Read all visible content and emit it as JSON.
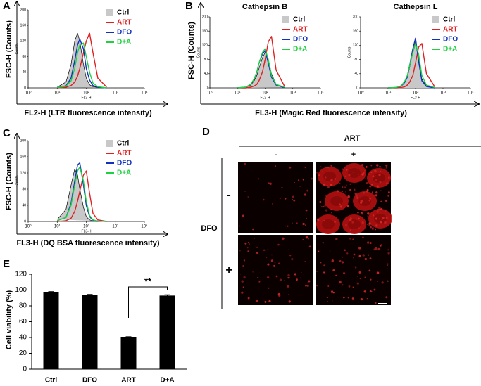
{
  "chart_data": [
    {
      "type": "line",
      "panel": "A",
      "outer_y_label": "FSC-H (Counts)",
      "outer_x_label": "FL2-H (LTR fluorescence intensity)",
      "x_label": "FL3-H",
      "y_label": "Counts",
      "log_x": true,
      "xlim": [
        1,
        10000
      ],
      "xticks": [
        {
          "value": 1,
          "label": "10⁰"
        },
        {
          "value": 10,
          "label": "10¹"
        },
        {
          "value": 100,
          "label": "10²"
        },
        {
          "value": 1000,
          "label": "10³"
        },
        {
          "value": 10000,
          "label": "10⁴"
        }
      ],
      "ylim": [
        0,
        200
      ],
      "yticks": [
        0,
        40,
        80,
        120,
        160,
        200
      ],
      "x": [
        10,
        20,
        30,
        40,
        50,
        60,
        80,
        100,
        130,
        170,
        250,
        500
      ],
      "series": [
        {
          "name": "Ctrl",
          "color": "#000000",
          "fill": "#c8c8c8",
          "values": [
            2,
            15,
            60,
            120,
            140,
            120,
            60,
            25,
            8,
            3,
            1,
            0
          ]
        },
        {
          "name": "ART",
          "color": "#e02020",
          "values": [
            0,
            2,
            6,
            15,
            30,
            50,
            90,
            120,
            140,
            90,
            25,
            2
          ]
        },
        {
          "name": "DFO",
          "color": "#1030c0",
          "values": [
            1,
            5,
            25,
            70,
            110,
            125,
            100,
            50,
            20,
            6,
            2,
            0
          ]
        },
        {
          "name": "D+A",
          "color": "#20d040",
          "values": [
            1,
            4,
            18,
            50,
            90,
            110,
            115,
            80,
            40,
            12,
            3,
            0
          ]
        }
      ]
    },
    {
      "type": "line",
      "panel": "B",
      "title": "Cathepsin B",
      "outer_y_label": "FSC-H (Counts)",
      "outer_x_label": "FL3-H (Magic Red fluorescence intensity)",
      "x_label": "FL3-H",
      "y_label": "Counts",
      "log_x": true,
      "xlim": [
        1,
        10000
      ],
      "xticks": [
        {
          "value": 1,
          "label": "10⁰"
        },
        {
          "value": 10,
          "label": "10¹"
        },
        {
          "value": 100,
          "label": "10²"
        },
        {
          "value": 1000,
          "label": "10³"
        },
        {
          "value": 10000,
          "label": "10⁴"
        }
      ],
      "ylim": [
        0,
        200
      ],
      "yticks": [
        0,
        40,
        80,
        120,
        160,
        200
      ],
      "x": [
        10,
        20,
        30,
        40,
        50,
        60,
        80,
        100,
        130,
        170,
        250,
        500
      ],
      "series": [
        {
          "name": "Ctrl",
          "color": "#000000",
          "fill": "#c8c8c8",
          "values": [
            0,
            2,
            8,
            20,
            35,
            55,
            85,
            100,
            80,
            40,
            10,
            1
          ]
        },
        {
          "name": "ART",
          "color": "#e02020",
          "values": [
            0,
            0,
            2,
            5,
            10,
            20,
            45,
            80,
            130,
            145,
            50,
            5
          ]
        },
        {
          "name": "DFO",
          "color": "#1030c0",
          "values": [
            0,
            2,
            10,
            25,
            45,
            70,
            95,
            105,
            70,
            30,
            8,
            1
          ]
        },
        {
          "name": "D+A",
          "color": "#20d040",
          "values": [
            0,
            2,
            10,
            25,
            45,
            70,
            100,
            110,
            80,
            35,
            10,
            2
          ]
        }
      ]
    },
    {
      "type": "line",
      "title": "Cathepsin L",
      "x_label": "FL3-H",
      "y_label": "Counts",
      "log_x": true,
      "xlim": [
        1,
        10000
      ],
      "xticks": [
        {
          "value": 1,
          "label": "10⁰"
        },
        {
          "value": 10,
          "label": "10¹"
        },
        {
          "value": 100,
          "label": "10²"
        },
        {
          "value": 1000,
          "label": "10³"
        },
        {
          "value": 10000,
          "label": "10⁴"
        }
      ],
      "ylim": [
        0,
        200
      ],
      "yticks": [
        0,
        40,
        80,
        120,
        160,
        200
      ],
      "x": [
        10,
        20,
        30,
        40,
        50,
        60,
        80,
        100,
        130,
        170,
        250,
        500
      ],
      "series": [
        {
          "name": "Ctrl",
          "color": "#000000",
          "fill": "#c8c8c8",
          "values": [
            0,
            1,
            5,
            15,
            30,
            55,
            100,
            130,
            80,
            25,
            5,
            0
          ]
        },
        {
          "name": "ART",
          "color": "#e02020",
          "values": [
            0,
            0,
            1,
            3,
            8,
            15,
            35,
            70,
            115,
            125,
            40,
            3
          ]
        },
        {
          "name": "DFO",
          "color": "#1030c0",
          "values": [
            0,
            1,
            5,
            15,
            30,
            60,
            110,
            140,
            75,
            20,
            4,
            0
          ]
        },
        {
          "name": "D+A",
          "color": "#20d040",
          "values": [
            0,
            1,
            6,
            18,
            35,
            60,
            100,
            125,
            95,
            35,
            8,
            1
          ]
        }
      ]
    },
    {
      "type": "line",
      "panel": "C",
      "outer_y_label": "FSC-H (Counts)",
      "outer_x_label": "FL3-H (DQ BSA fluorescence intensity)",
      "x_label": "FL3-H",
      "y_label": "Counts",
      "log_x": true,
      "xlim": [
        1,
        10000
      ],
      "xticks": [
        {
          "value": 1,
          "label": "10⁰"
        },
        {
          "value": 10,
          "label": "10¹"
        },
        {
          "value": 100,
          "label": "10²"
        },
        {
          "value": 1000,
          "label": "10³"
        },
        {
          "value": 10000,
          "label": "10⁴"
        }
      ],
      "ylim": [
        0,
        200
      ],
      "yticks": [
        0,
        40,
        80,
        120,
        160,
        200
      ],
      "x": [
        10,
        20,
        30,
        40,
        50,
        60,
        80,
        100,
        130,
        170,
        250,
        500
      ],
      "series": [
        {
          "name": "Ctrl",
          "color": "#000000",
          "fill": "#c8c8c8",
          "values": [
            5,
            30,
            90,
            130,
            115,
            80,
            35,
            12,
            4,
            1,
            0,
            0
          ]
        },
        {
          "name": "ART",
          "color": "#e02020",
          "values": [
            0,
            2,
            8,
            25,
            50,
            75,
            115,
            125,
            70,
            20,
            4,
            0
          ]
        },
        {
          "name": "DFO",
          "color": "#1030c0",
          "values": [
            2,
            10,
            45,
            100,
            140,
            145,
            90,
            40,
            12,
            3,
            1,
            0
          ]
        },
        {
          "name": "D+A",
          "color": "#20d040",
          "values": [
            2,
            10,
            40,
            90,
            125,
            135,
            100,
            50,
            15,
            4,
            1,
            0
          ]
        }
      ]
    },
    {
      "type": "bar",
      "panel": "E",
      "y_label": "Cell viability (%)",
      "annotation": "**",
      "color": "#000000",
      "categories": [
        "Ctrl",
        "DFO",
        "ART",
        "D+A"
      ],
      "values": [
        97,
        93.5,
        40,
        93
      ],
      "errors": [
        1,
        1,
        1,
        1
      ],
      "ylim": [
        0,
        120
      ],
      "yticks": [
        0,
        20,
        40,
        60,
        80,
        100,
        120
      ]
    }
  ],
  "panel_d": {
    "label": "D",
    "column_header": "ART",
    "columns": [
      "-",
      "+"
    ],
    "row_header": "DFO",
    "rows": [
      "-",
      "+"
    ]
  }
}
